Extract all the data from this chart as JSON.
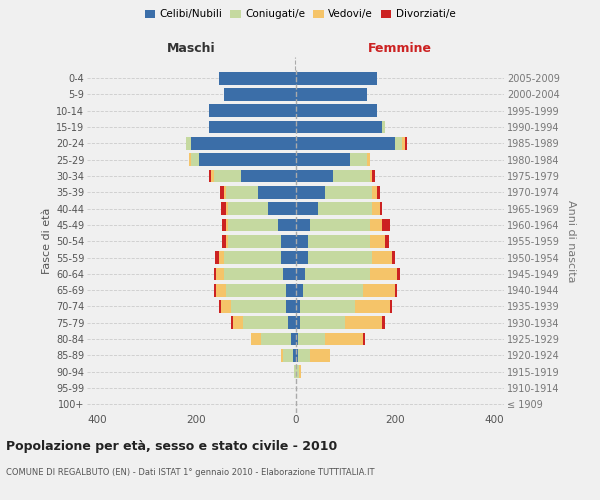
{
  "age_groups": [
    "100+",
    "95-99",
    "90-94",
    "85-89",
    "80-84",
    "75-79",
    "70-74",
    "65-69",
    "60-64",
    "55-59",
    "50-54",
    "45-49",
    "40-44",
    "35-39",
    "30-34",
    "25-29",
    "20-24",
    "15-19",
    "10-14",
    "5-9",
    "0-4"
  ],
  "birth_years": [
    "≤ 1909",
    "1910-1914",
    "1915-1919",
    "1920-1924",
    "1925-1929",
    "1930-1934",
    "1935-1939",
    "1940-1944",
    "1945-1949",
    "1950-1954",
    "1955-1959",
    "1960-1964",
    "1965-1969",
    "1970-1974",
    "1975-1979",
    "1980-1984",
    "1985-1989",
    "1990-1994",
    "1995-1999",
    "2000-2004",
    "2005-2009"
  ],
  "males": {
    "celibi": [
      0,
      0,
      0,
      5,
      10,
      15,
      20,
      20,
      25,
      30,
      30,
      35,
      55,
      75,
      110,
      195,
      210,
      175,
      175,
      145,
      155
    ],
    "coniugati": [
      0,
      0,
      3,
      20,
      60,
      90,
      110,
      120,
      120,
      115,
      105,
      100,
      80,
      65,
      55,
      15,
      10,
      0,
      0,
      0,
      0
    ],
    "vedovi": [
      0,
      0,
      0,
      5,
      20,
      20,
      20,
      20,
      15,
      10,
      5,
      5,
      5,
      5,
      5,
      5,
      0,
      0,
      0,
      0,
      0
    ],
    "divorziati": [
      0,
      0,
      0,
      0,
      0,
      5,
      5,
      5,
      5,
      8,
      8,
      8,
      10,
      8,
      5,
      0,
      0,
      0,
      0,
      0,
      0
    ]
  },
  "females": {
    "nubili": [
      0,
      0,
      2,
      5,
      5,
      10,
      10,
      15,
      20,
      25,
      25,
      30,
      45,
      60,
      75,
      110,
      200,
      175,
      165,
      145,
      165
    ],
    "coniugate": [
      0,
      0,
      5,
      25,
      55,
      90,
      110,
      120,
      130,
      130,
      125,
      120,
      110,
      95,
      75,
      35,
      15,
      5,
      0,
      0,
      0
    ],
    "vedove": [
      0,
      0,
      5,
      40,
      75,
      75,
      70,
      65,
      55,
      40,
      30,
      25,
      15,
      10,
      5,
      5,
      5,
      0,
      0,
      0,
      0
    ],
    "divorziate": [
      0,
      0,
      0,
      0,
      5,
      5,
      5,
      5,
      5,
      5,
      8,
      15,
      5,
      5,
      5,
      0,
      5,
      0,
      0,
      0,
      0
    ]
  },
  "colors": {
    "celibi_nubili": "#3b6ea8",
    "coniugati": "#c5d9a0",
    "vedovi": "#f5c469",
    "divorziati": "#cc2222"
  },
  "xlim": 420,
  "title": "Popolazione per età, sesso e stato civile - 2010",
  "subtitle": "COMUNE DI REGALBUTO (EN) - Dati ISTAT 1° gennaio 2010 - Elaborazione TUTTITALIA.IT",
  "xlabel_left": "Maschi",
  "xlabel_right": "Femmine",
  "ylabel_left": "Fasce di età",
  "ylabel_right": "Anni di nascita",
  "background_color": "#f0f0f0"
}
